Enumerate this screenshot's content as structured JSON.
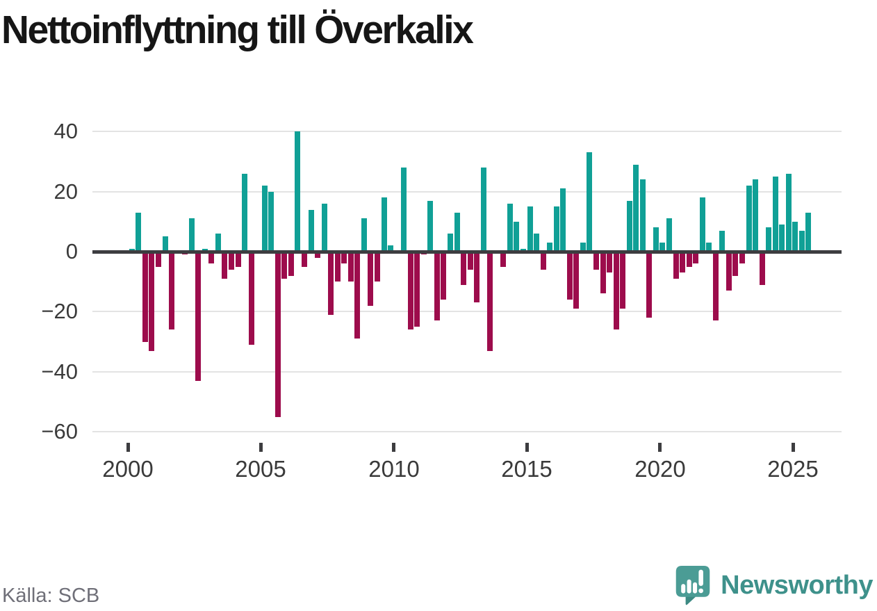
{
  "title": "Nettoinflyttning till Överkalix",
  "source": "Källa: SCB",
  "branding": {
    "name": "Newsworthy",
    "logo_icon": "newsworthy-speech-bubble-chart-icon",
    "color": "#3e918b",
    "logo_fill": "#4b9c95"
  },
  "chart_data": {
    "type": "bar",
    "title": "Nettoinflyttning till Överkalix",
    "bar_period": "quarterly",
    "legend": "none",
    "grid": "horizontal",
    "positive_color": "#10a096",
    "negative_color": "#9d0c4c",
    "y_axis": {
      "ticks": [
        40,
        20,
        0,
        -20,
        -40,
        -60
      ],
      "range": [
        -60,
        45
      ]
    },
    "x_axis": {
      "tick_years": [
        2000,
        2005,
        2010,
        2015,
        2020,
        2025
      ]
    },
    "series": [
      {
        "year": 2000,
        "values": [
          1,
          13,
          -30,
          -33
        ]
      },
      {
        "year": 2001,
        "values": [
          -5,
          5,
          -26,
          0
        ]
      },
      {
        "year": 2002,
        "values": [
          -1,
          11,
          -43,
          1
        ]
      },
      {
        "year": 2003,
        "values": [
          -4,
          6,
          -9,
          -6
        ]
      },
      {
        "year": 2004,
        "values": [
          -5,
          26,
          -31,
          0
        ]
      },
      {
        "year": 2005,
        "values": [
          22,
          20,
          -55,
          -9
        ]
      },
      {
        "year": 2006,
        "values": [
          -8,
          40,
          -5,
          14
        ]
      },
      {
        "year": 2007,
        "values": [
          -2,
          16,
          -21,
          -10
        ]
      },
      {
        "year": 2008,
        "values": [
          -4,
          -10,
          -29,
          11
        ]
      },
      {
        "year": 2009,
        "values": [
          -18,
          -10,
          18,
          2
        ]
      },
      {
        "year": 2010,
        "values": [
          0,
          28,
          -26,
          -25
        ]
      },
      {
        "year": 2011,
        "values": [
          -1,
          17,
          -23,
          -16
        ]
      },
      {
        "year": 2012,
        "values": [
          6,
          13,
          -11,
          -6
        ]
      },
      {
        "year": 2013,
        "values": [
          -17,
          28,
          -33,
          0
        ]
      },
      {
        "year": 2014,
        "values": [
          -5,
          16,
          10,
          1
        ]
      },
      {
        "year": 2015,
        "values": [
          15,
          6,
          -6,
          3
        ]
      },
      {
        "year": 2016,
        "values": [
          15,
          21,
          -16,
          -19
        ]
      },
      {
        "year": 2017,
        "values": [
          3,
          33,
          -6,
          -14
        ]
      },
      {
        "year": 2018,
        "values": [
          -7,
          -26,
          -19,
          17
        ]
      },
      {
        "year": 2019,
        "values": [
          29,
          24,
          -22,
          8
        ]
      },
      {
        "year": 2020,
        "values": [
          3,
          11,
          -9,
          -7
        ]
      },
      {
        "year": 2021,
        "values": [
          -5,
          -4,
          18,
          3
        ]
      },
      {
        "year": 2022,
        "values": [
          -23,
          7,
          -13,
          -8
        ]
      },
      {
        "year": 2023,
        "values": [
          -4,
          22,
          24,
          -11
        ]
      },
      {
        "year": 2024,
        "values": [
          8,
          25,
          9,
          26
        ]
      },
      {
        "year": 2025,
        "values": [
          10,
          7,
          13
        ]
      }
    ]
  }
}
